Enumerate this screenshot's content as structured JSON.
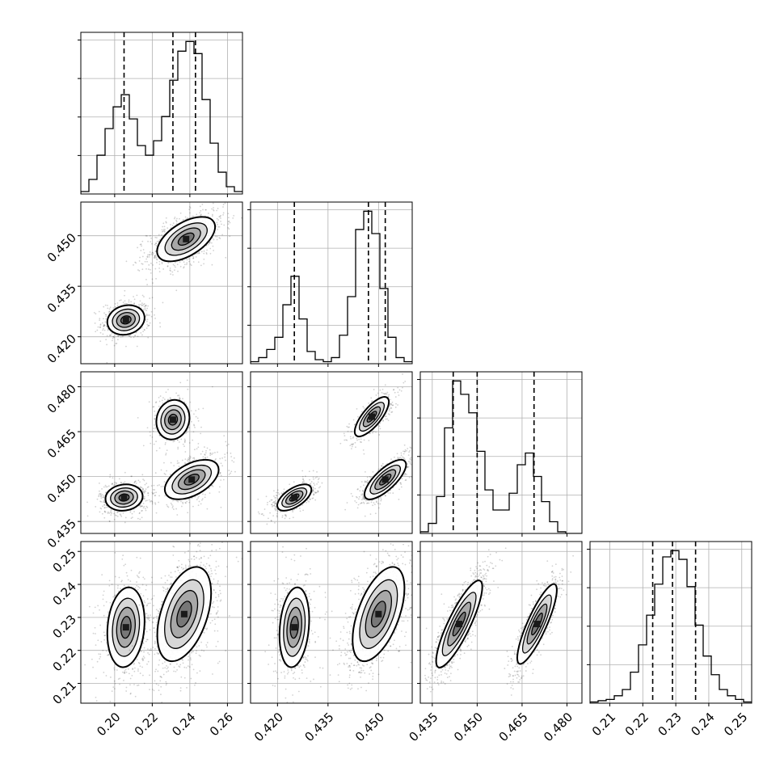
{
  "chart_data": {
    "type": "corner",
    "grid": true,
    "parameters": 4,
    "ranges": [
      [
        0.182,
        0.268
      ],
      [
        0.412,
        0.46
      ],
      [
        0.431,
        0.485
      ],
      [
        0.204,
        0.253
      ]
    ],
    "ticks": [
      {
        "values": [
          0.2,
          0.22,
          0.24,
          0.26
        ],
        "labels": [
          "0.20",
          "0.22",
          "0.24",
          "0.26"
        ]
      },
      {
        "values": [
          0.42,
          0.435,
          0.45
        ],
        "labels": [
          "0.420",
          "0.435",
          "0.450"
        ]
      },
      {
        "values": [
          0.435,
          0.45,
          0.465,
          0.48
        ],
        "labels": [
          "0.435",
          "0.450",
          "0.465",
          "0.480"
        ]
      },
      {
        "values": [
          0.21,
          0.22,
          0.23,
          0.24,
          0.25
        ],
        "labels": [
          "0.21",
          "0.22",
          "0.23",
          "0.24",
          "0.25"
        ]
      }
    ],
    "quantiles": [
      [
        0.205,
        0.231,
        0.243
      ],
      [
        0.425,
        0.447,
        0.452
      ],
      [
        0.442,
        0.45,
        0.469
      ],
      [
        0.223,
        0.229,
        0.236
      ]
    ],
    "histograms": [
      {
        "bin_start": 0.182,
        "bin_width": 0.0043,
        "counts": [
          1,
          6,
          16,
          27,
          36,
          41,
          31,
          20,
          16,
          22,
          32,
          47,
          59,
          63,
          58,
          39,
          21,
          9,
          3,
          1
        ]
      },
      {
        "bin_start": 0.412,
        "bin_width": 0.0024,
        "counts": [
          1,
          3,
          7,
          13,
          29,
          43,
          22,
          6,
          2,
          1,
          3,
          14,
          33,
          66,
          75,
          64,
          37,
          13,
          3,
          1
        ]
      },
      {
        "bin_start": 0.431,
        "bin_width": 0.0027,
        "counts": [
          1,
          6,
          22,
          63,
          91,
          83,
          72,
          49,
          26,
          14,
          14,
          24,
          41,
          48,
          34,
          19,
          7,
          1,
          0,
          0
        ]
      },
      {
        "bin_start": 0.204,
        "bin_width": 0.00245,
        "counts": [
          1,
          2,
          3,
          6,
          11,
          25,
          47,
          71,
          96,
          118,
          123,
          116,
          94,
          63,
          38,
          23,
          11,
          6,
          3,
          1
        ]
      }
    ],
    "clusters": [
      {
        "x": 0,
        "y": 1,
        "components": [
          {
            "mx": 0.206,
            "my": 0.425,
            "sx": 0.0045,
            "sy": 0.002,
            "rho": 0.15,
            "weight": 0.38
          },
          {
            "mx": 0.238,
            "my": 0.449,
            "sx": 0.007,
            "sy": 0.003,
            "rho": 0.55,
            "weight": 0.62
          }
        ]
      },
      {
        "x": 0,
        "y": 2,
        "components": [
          {
            "mx": 0.205,
            "my": 0.443,
            "sx": 0.0045,
            "sy": 0.002,
            "rho": 0.1,
            "weight": 0.36
          },
          {
            "mx": 0.231,
            "my": 0.469,
            "sx": 0.004,
            "sy": 0.003,
            "rho": 0.1,
            "weight": 0.26
          },
          {
            "mx": 0.241,
            "my": 0.449,
            "sx": 0.0065,
            "sy": 0.003,
            "rho": 0.5,
            "weight": 0.38
          }
        ]
      },
      {
        "x": 0,
        "y": 3,
        "components": [
          {
            "mx": 0.206,
            "my": 0.227,
            "sx": 0.0045,
            "sy": 0.0055,
            "rho": 0.15,
            "weight": 0.38
          },
          {
            "mx": 0.237,
            "my": 0.231,
            "sx": 0.0065,
            "sy": 0.0065,
            "rho": 0.45,
            "weight": 0.62
          }
        ]
      },
      {
        "x": 1,
        "y": 2,
        "components": [
          {
            "mx": 0.425,
            "my": 0.443,
            "sx": 0.0023,
            "sy": 0.002,
            "rho": 0.6,
            "weight": 0.36
          },
          {
            "mx": 0.448,
            "my": 0.47,
            "sx": 0.0023,
            "sy": 0.003,
            "rho": 0.75,
            "weight": 0.26
          },
          {
            "mx": 0.452,
            "my": 0.449,
            "sx": 0.0028,
            "sy": 0.003,
            "rho": 0.75,
            "weight": 0.38
          }
        ]
      },
      {
        "x": 1,
        "y": 3,
        "components": [
          {
            "mx": 0.425,
            "my": 0.227,
            "sx": 0.002,
            "sy": 0.0055,
            "rho": 0.2,
            "weight": 0.38
          },
          {
            "mx": 0.45,
            "my": 0.231,
            "sx": 0.0035,
            "sy": 0.0065,
            "rho": 0.55,
            "weight": 0.62
          }
        ]
      },
      {
        "x": 2,
        "y": 3,
        "components": [
          {
            "mx": 0.444,
            "my": 0.228,
            "sx": 0.0035,
            "sy": 0.006,
            "rho": 0.85,
            "weight": 0.62
          },
          {
            "mx": 0.47,
            "my": 0.228,
            "sx": 0.003,
            "sy": 0.0055,
            "rho": 0.85,
            "weight": 0.38
          }
        ]
      }
    ]
  }
}
